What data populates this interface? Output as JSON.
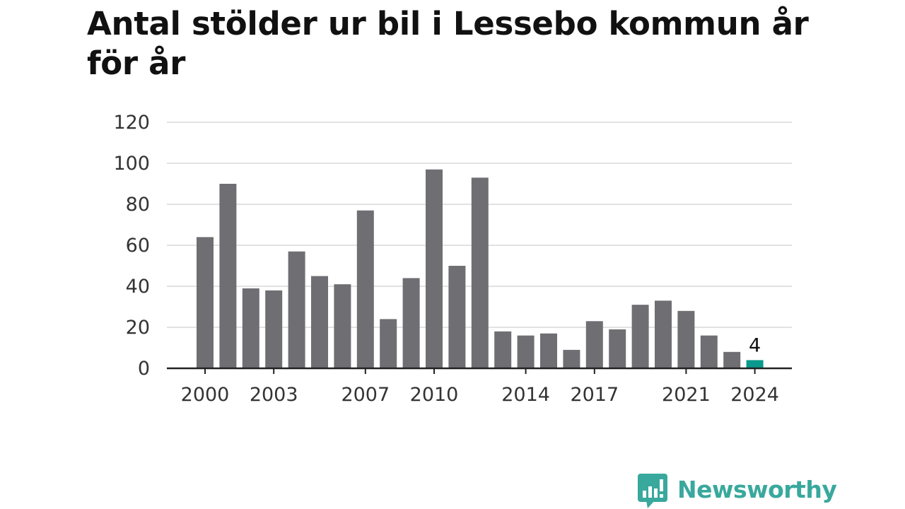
{
  "title": "Antal stölder ur bil i Lessebo kommun år för år",
  "brand": {
    "name": "Newsworthy",
    "icon": "newsworthy-logo-icon",
    "color": "#39a89d"
  },
  "colors": {
    "bar": "#6f6e73",
    "highlight": "#0a9a8d",
    "grid": "#d9d9d9",
    "axis": "#222222",
    "label": "#333333"
  },
  "chart_data": {
    "type": "bar",
    "categories": [
      "2000",
      "2001",
      "2002",
      "2003",
      "2004",
      "2005",
      "2006",
      "2007",
      "2008",
      "2009",
      "2010",
      "2011",
      "2012",
      "2013",
      "2014",
      "2015",
      "2016",
      "2017",
      "2018",
      "2019",
      "2020",
      "2021",
      "2022",
      "2023",
      "2024"
    ],
    "values": [
      64,
      90,
      39,
      38,
      57,
      45,
      41,
      77,
      24,
      44,
      97,
      50,
      93,
      18,
      16,
      17,
      9,
      23,
      19,
      31,
      33,
      28,
      16,
      8,
      4
    ],
    "highlight_index": 24,
    "highlight_label": "4",
    "xticks": [
      "2000",
      "2003",
      "2007",
      "2010",
      "2014",
      "2017",
      "2021",
      "2024"
    ],
    "yticks": [
      "0",
      "20",
      "40",
      "60",
      "80",
      "100",
      "120"
    ],
    "ylim": [
      0,
      120
    ],
    "grid": true,
    "title": "Antal stölder ur bil i Lessebo kommun år för år",
    "xlabel": "",
    "ylabel": ""
  }
}
